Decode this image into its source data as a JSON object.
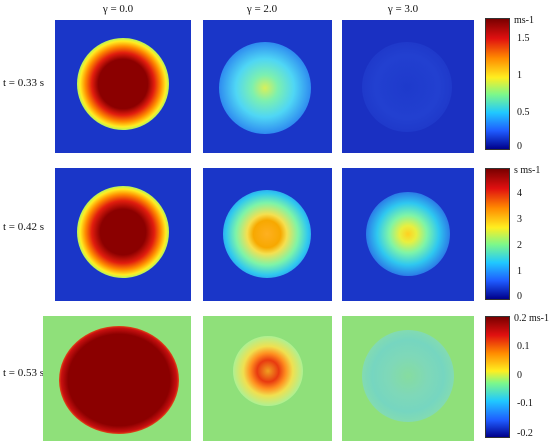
{
  "columns": [
    "γ = 0.0",
    "γ = 2.0",
    "γ = 3.0"
  ],
  "rows": [
    {
      "label": "t = 0.33 s",
      "colorbar": {
        "unit": "ms-1",
        "ticks": [
          "1.5",
          "1",
          "0.5",
          "0"
        ],
        "range": [
          0,
          1.8
        ]
      }
    },
    {
      "label": "t = 0.42 s",
      "colorbar": {
        "unit": "s ms-1",
        "ticks": [
          "4",
          "3",
          "2",
          "1",
          "0"
        ],
        "range": [
          0,
          5
        ]
      }
    },
    {
      "label": "t = 0.53 s",
      "colorbar": {
        "unit": "0.2 ms-1",
        "ticks": [
          "0.1",
          "0",
          "-0.1",
          "-0.2"
        ],
        "range": [
          -0.2,
          0.2
        ]
      }
    }
  ],
  "colors": {
    "bg_dark_blue": "#1b33c4",
    "bg_green": "#8fe07a",
    "hot_red": "#8b0000"
  }
}
